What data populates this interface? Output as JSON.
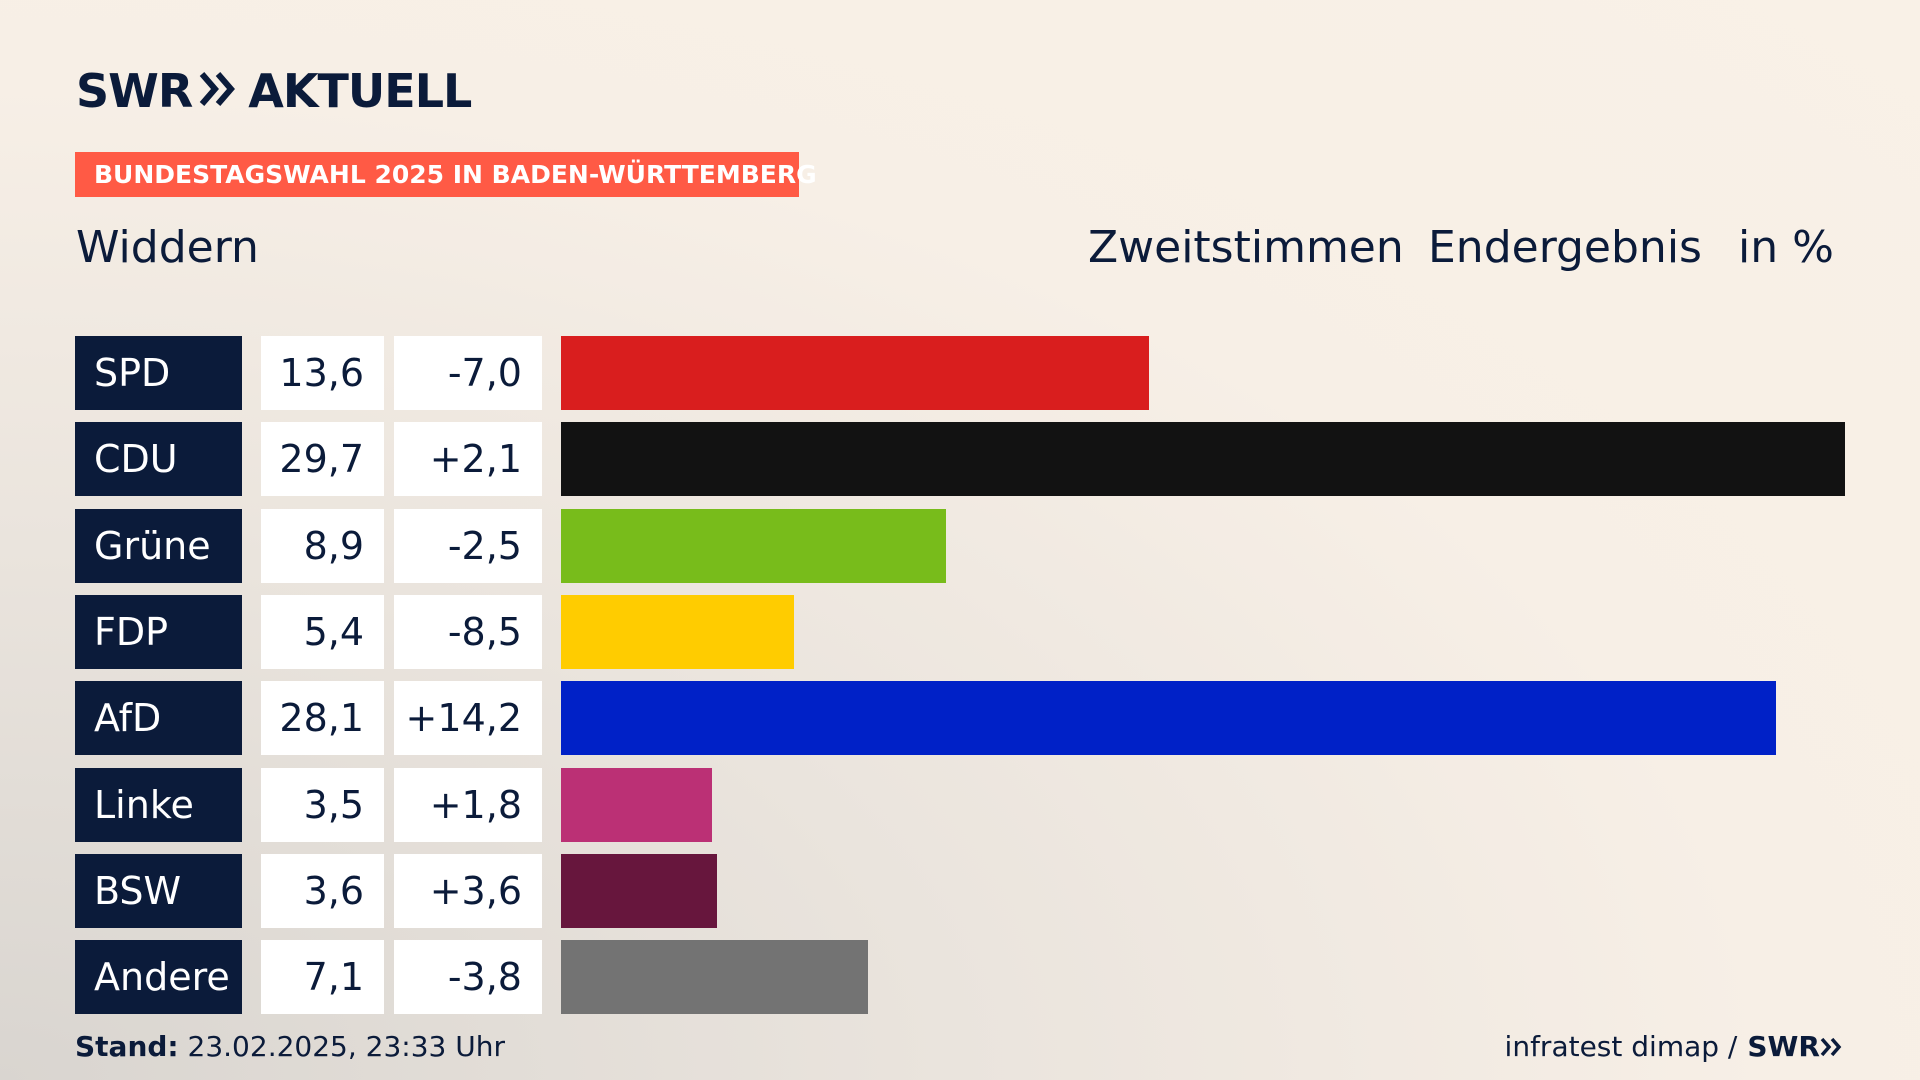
{
  "logo": {
    "swr": "SWR",
    "aktuell": "AKTUELL"
  },
  "banner": "BUNDESTAGSWAHL 2025 IN BADEN-WÜRTTEMBERG",
  "place": "Widdern",
  "header": {
    "vote_type": "Zweitstimmen",
    "result_type": "Endergebnis",
    "unit": "in %"
  },
  "chart_data": {
    "type": "bar",
    "categories": [
      "SPD",
      "CDU",
      "Grüne",
      "FDP",
      "AfD",
      "Linke",
      "BSW",
      "Andere"
    ],
    "values": [
      13.6,
      29.7,
      8.9,
      5.4,
      28.1,
      3.5,
      3.6,
      7.1
    ],
    "value_labels": [
      "13,6",
      "29,7",
      "8,9",
      "5,4",
      "28,1",
      "3,5",
      "3,6",
      "7,1"
    ],
    "diff_labels": [
      "-7,0",
      "+2,1",
      "-2,5",
      "-8,5",
      "+14,2",
      "+1,8",
      "+3,6",
      "-3,8"
    ],
    "diffs": [
      -7.0,
      2.1,
      -2.5,
      -8.5,
      14.2,
      1.8,
      3.6,
      -3.8
    ],
    "colors": [
      "#d91e1e",
      "#121212",
      "#78bc1b",
      "#ffcc00",
      "#0021c7",
      "#bb3075",
      "#67163d",
      "#737373"
    ],
    "max_value": 29.7,
    "orientation": "horizontal"
  },
  "footer": {
    "stand_label": "Stand:",
    "stand_value": "23.02.2025, 23:33 Uhr",
    "source": "infratest dimap /",
    "source_logo": "SWR"
  }
}
